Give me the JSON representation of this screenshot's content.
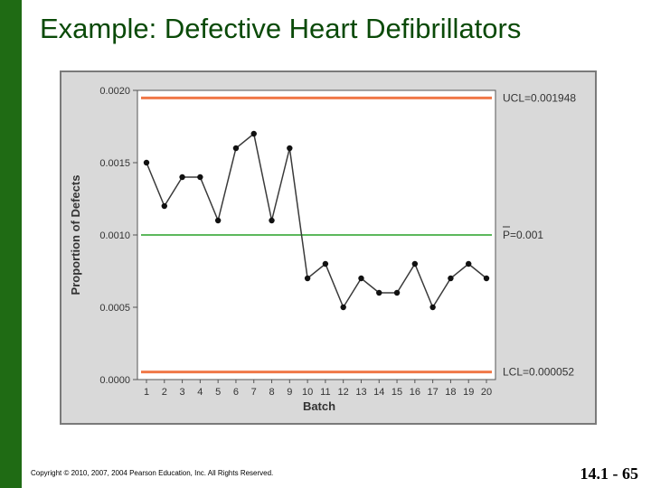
{
  "slide": {
    "title": "Example: Defective Heart Defibrillators",
    "copyright": "Copyright © 2010, 2007, 2004 Pearson Education, Inc. All Rights Reserved.",
    "page_number": "14.1 - 65"
  },
  "colors": {
    "accent_bar": "#1f6b14",
    "title_text": "#0a4a08",
    "series_line": "#3a3a3a",
    "control_limit_line": "#f07848",
    "center_line": "#5cb85c"
  },
  "chart_data": {
    "type": "line",
    "title": "",
    "xlabel": "Batch",
    "ylabel": "Proportion of Defects",
    "x": [
      1,
      2,
      3,
      4,
      5,
      6,
      7,
      8,
      9,
      10,
      11,
      12,
      13,
      14,
      15,
      16,
      17,
      18,
      19,
      20
    ],
    "series": [
      {
        "name": "Proportion of Defects",
        "values": [
          0.0015,
          0.0012,
          0.0014,
          0.0014,
          0.0011,
          0.0016,
          0.0017,
          0.0011,
          0.0016,
          0.0007,
          0.0008,
          0.0005,
          0.0007,
          0.0006,
          0.0006,
          0.0008,
          0.0005,
          0.0007,
          0.0008,
          0.0007
        ]
      }
    ],
    "ylim": [
      0,
      0.002
    ],
    "yticks": [
      0,
      0.0005,
      0.001,
      0.0015,
      0.002
    ],
    "ytick_labels": [
      "0.0000",
      "0.0005",
      "0.0010",
      "0.0015",
      "0.0020"
    ],
    "xtick_labels": [
      "1",
      "2",
      "3",
      "4",
      "5",
      "6",
      "7",
      "8",
      "9",
      "10",
      "11",
      "12",
      "13",
      "14",
      "15",
      "16",
      "17",
      "18",
      "19",
      "20"
    ],
    "reference_lines": [
      {
        "name": "ucl",
        "value": 0.001948,
        "label": "UCL=0.001948"
      },
      {
        "name": "center",
        "value": 0.001,
        "label": "P=0.001"
      },
      {
        "name": "lcl",
        "value": 5.2e-05,
        "label": "LCL=0.000052"
      }
    ],
    "grid": false
  }
}
